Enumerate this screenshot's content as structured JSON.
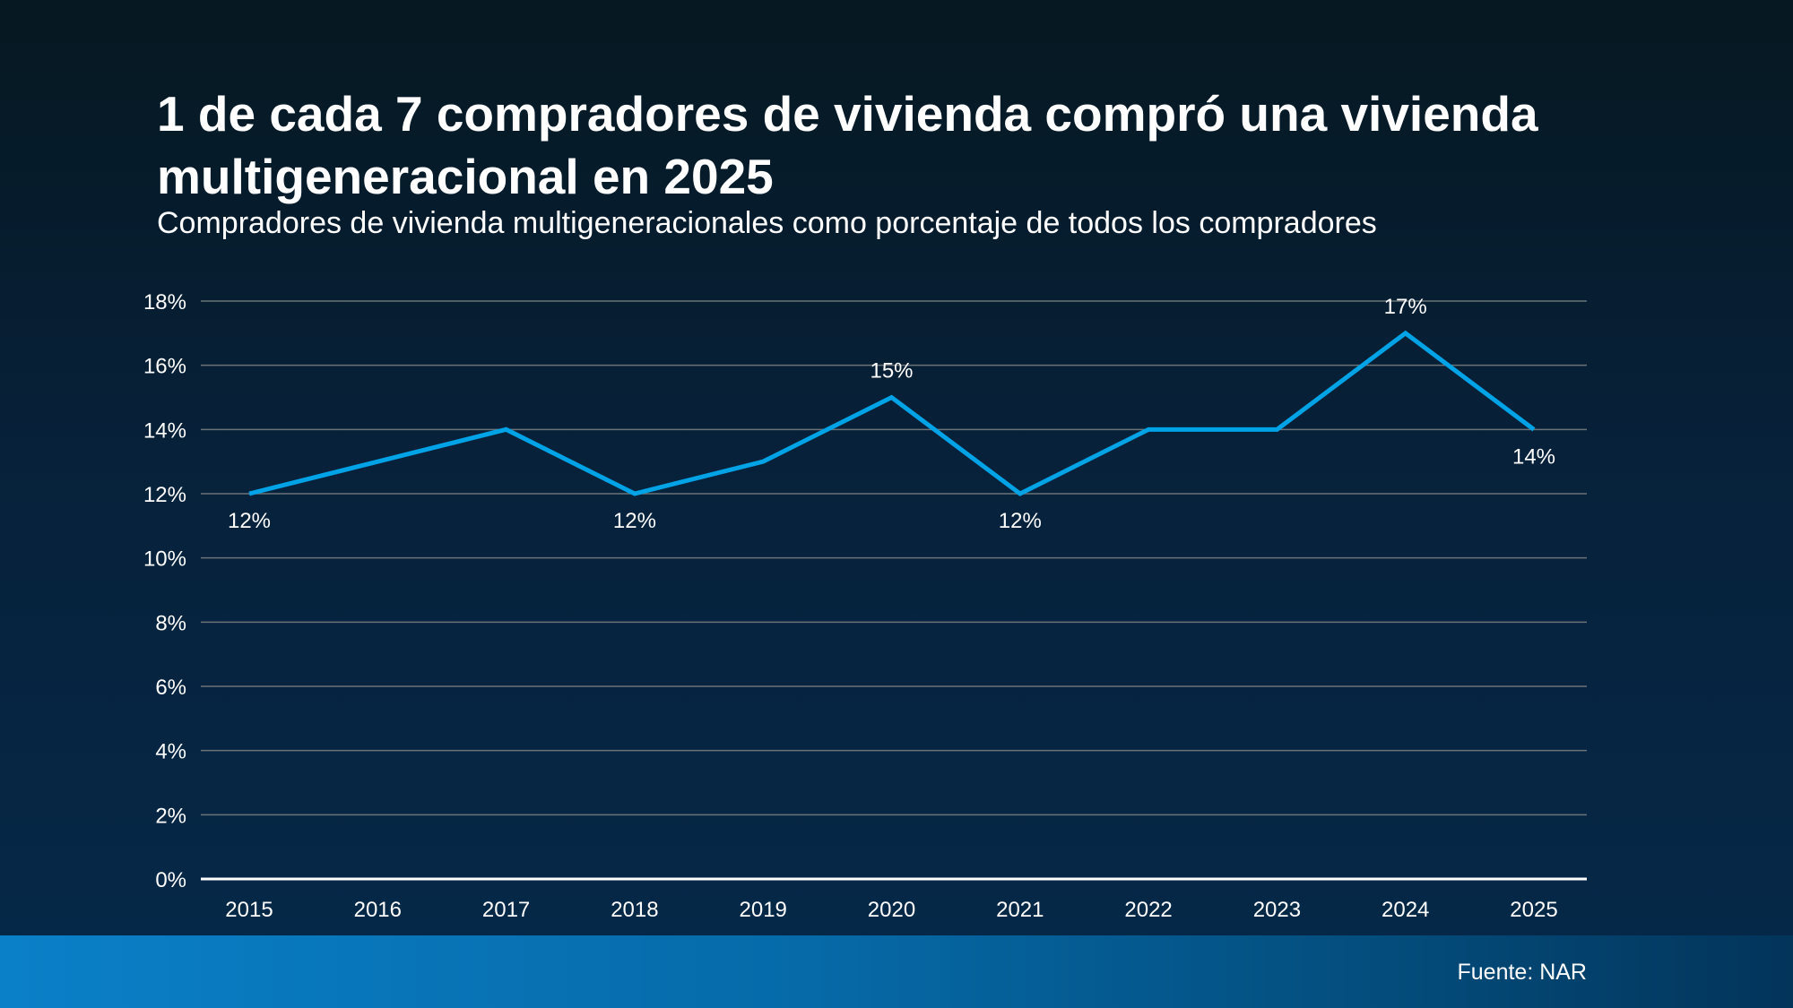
{
  "title": "1 de cada 7 compradores de vivienda compró una vivienda multigeneracional en 2025",
  "subtitle": "Compradores de vivienda multigeneracionales como porcentaje de todos los compradores",
  "source": "Fuente: NAR",
  "colors": {
    "line": "#00a3e6",
    "grid": "#6b7378",
    "axis": "#ffffff"
  },
  "chart_data": {
    "type": "line",
    "categories": [
      "2015",
      "2016",
      "2017",
      "2018",
      "2019",
      "2020",
      "2021",
      "2022",
      "2023",
      "2024",
      "2025"
    ],
    "series": [
      {
        "values": [
          12,
          13,
          14,
          12,
          13,
          15,
          12,
          14,
          14,
          17,
          14
        ]
      }
    ],
    "data_labels": {
      "2015": "12%",
      "2018": "12%",
      "2020": "15%",
      "2021": "12%",
      "2024": "17%",
      "2025": "14%"
    },
    "yticks": [
      "0%",
      "2%",
      "4%",
      "6%",
      "8%",
      "10%",
      "12%",
      "14%",
      "16%",
      "18%"
    ],
    "ylim": [
      0,
      18
    ],
    "grid": true,
    "xlabel": "",
    "ylabel": ""
  }
}
